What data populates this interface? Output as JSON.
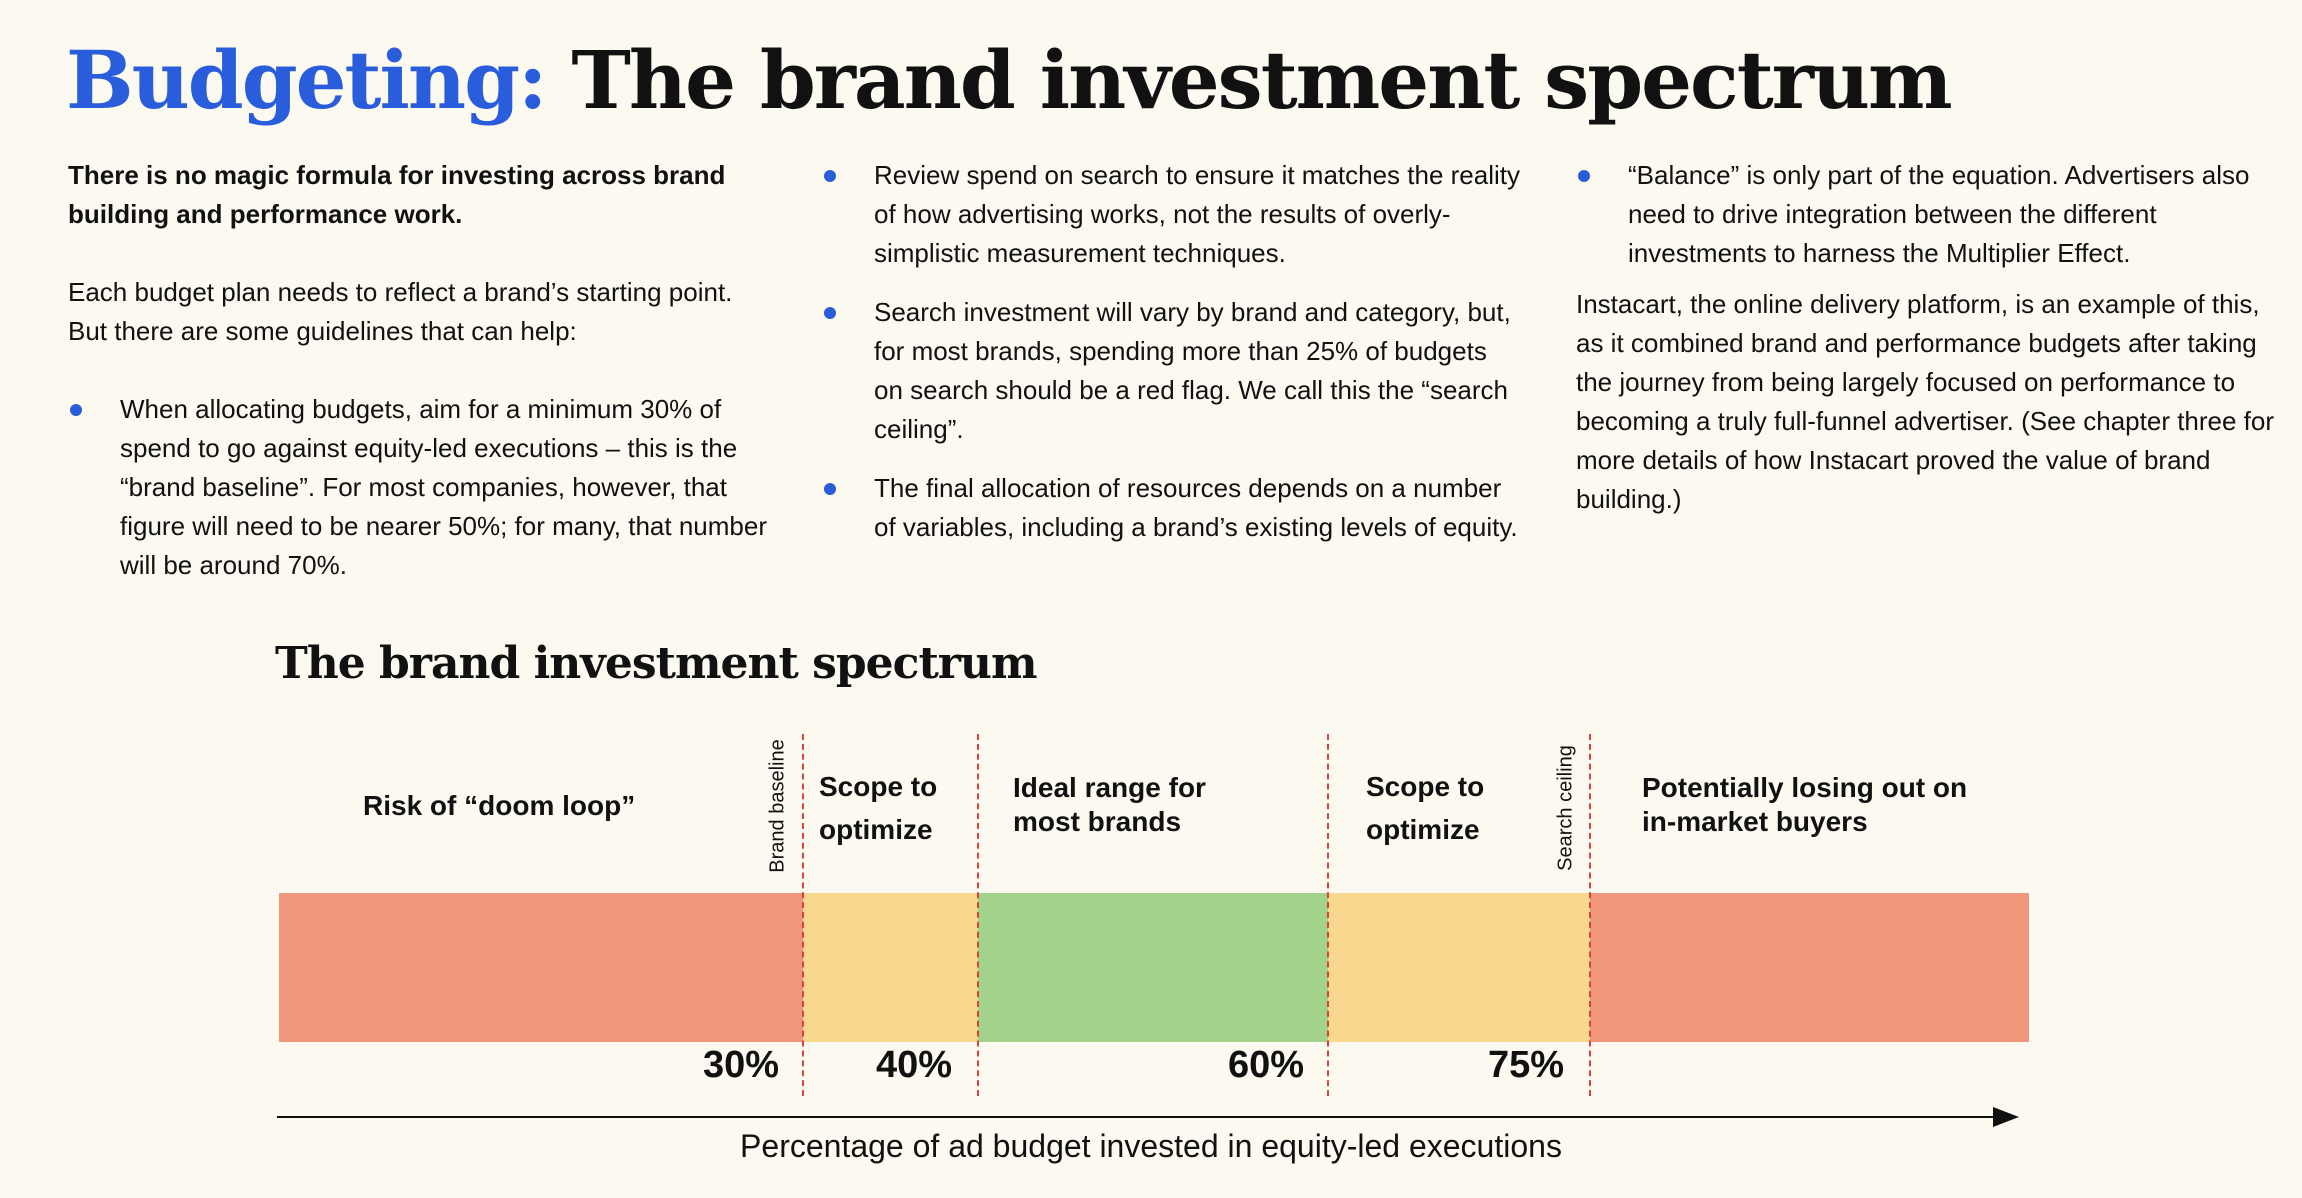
{
  "header": {
    "title_accent": "Budgeting:",
    "title_rest": "The brand investment spectrum"
  },
  "col1": {
    "lead": "There is no magic formula for investing across brand building and performance work.",
    "intro": "Each budget plan needs to reflect a brand’s starting point. But there are some guidelines that can help:",
    "bullets": [
      "When allocating budgets, aim for a minimum 30% of spend to go against equity-led executions – this is the “brand baseline”. For most companies, however, that figure will need to be nearer 50%; for many, that number will be around 70%."
    ]
  },
  "col2": {
    "bullets": [
      "Review spend on search to ensure it matches the reality of how advertising works, not the results of overly-simplistic measurement techniques.",
      "Search investment will vary by brand and category, but, for most brands, spending more than 25% of budgets on search should be a red flag. We call this the “search ceiling”.",
      "The final allocation of resources depends on a number of variables, including a brand’s existing levels of equity."
    ]
  },
  "col3": {
    "bullets": [
      "“Balance” is only part of the equation. Advertisers also need to drive integration between the different investments to harness the Multiplier Effect."
    ],
    "para": "Instacart, the online delivery platform, is an example of this, as it combined brand and performance budgets after taking the journey from being largely focused on performance to becoming a truly full-funnel advertiser. (See chapter three for more details of how Instacart proved the value of brand building.)"
  },
  "spectrum": {
    "title": "The brand investment spectrum",
    "x_axis_label": "Percentage of ad budget invested in equity-led executions",
    "zones": [
      {
        "label": "Risk of “doom loop”",
        "color": "#f0967a"
      },
      {
        "label": "Scope to optimize",
        "color": "#f8d78f"
      },
      {
        "label": "Ideal range for most brands",
        "color": "#a3d28b"
      },
      {
        "label": "Scope to optimize",
        "color": "#f8d78f"
      },
      {
        "label": "Potentially losing out on in-market buyers",
        "color": "#f0967a"
      }
    ],
    "markers": [
      {
        "value": "30%",
        "label": "Brand baseline"
      },
      {
        "value": "40%",
        "label": ""
      },
      {
        "value": "60%",
        "label": ""
      },
      {
        "value": "75%",
        "label": "Search ceiling"
      }
    ],
    "marker_line_color": "#d9443a"
  },
  "colors": {
    "accent": "#2a5ddb",
    "background": "#fcf9f1"
  }
}
